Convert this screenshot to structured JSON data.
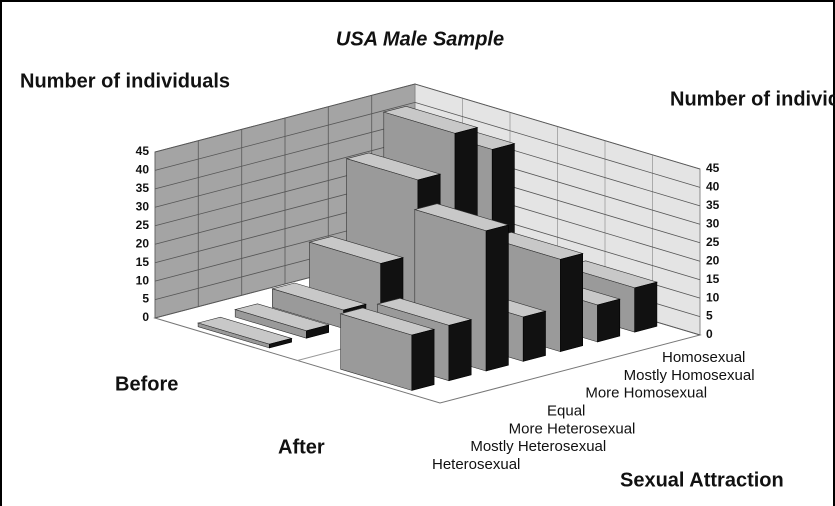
{
  "chart_data": {
    "type": "bar3d",
    "title": "USA Male Sample",
    "y_label": "Number of individuals",
    "y2_label": "Number of individuals",
    "x_label": "Sexual Attraction",
    "categories": [
      "Heterosexual",
      "Mostly Heterosexual",
      "More Heterosexual",
      "Equal",
      "More Homosexual",
      "Mostly Homosexual",
      "Homosexual"
    ],
    "series": [
      {
        "name": "Before",
        "color": "#9a9a9a",
        "values": [
          1,
          2,
          5,
          15,
          35,
          45,
          38
        ]
      },
      {
        "name": "After",
        "color": "#9a9a9a",
        "values": [
          15,
          15,
          38,
          12,
          25,
          10,
          12
        ]
      }
    ],
    "ylim": [
      0,
      45
    ],
    "yticks": [
      0,
      5,
      10,
      15,
      20,
      25,
      30,
      35,
      40,
      45
    ],
    "grid": true
  }
}
